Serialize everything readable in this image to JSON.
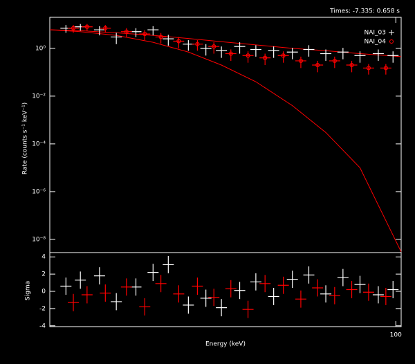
{
  "chart_data": [
    {
      "type": "scatter",
      "title": "Times: -7.335: 0.658 s",
      "ylabel": "Rate (counts s⁻¹ keV⁻¹)",
      "xscale": "log",
      "yscale": "log",
      "xlim": [
        8,
        104
      ],
      "ylim": [
        2.8e-09,
        20
      ],
      "yticks": [
        {
          "value": 1,
          "label": "10⁰"
        },
        {
          "value": 0.01,
          "label": "10⁻²"
        },
        {
          "value": 0.0001,
          "label": "10⁻⁴"
        },
        {
          "value": 1e-06,
          "label": "10⁻⁶"
        },
        {
          "value": 1e-08,
          "label": "10⁻⁸"
        }
      ],
      "legend": "upper right",
      "series": [
        {
          "name": "NAI_03",
          "color": "#ffffff",
          "marker": "+",
          "x": [
            9,
            10,
            11.5,
            13,
            15,
            17,
            19,
            22,
            25,
            28,
            32,
            36,
            41,
            47,
            53,
            60,
            68,
            77,
            88,
            98
          ],
          "values": [
            7,
            8,
            6,
            3,
            5,
            6,
            2.5,
            1.5,
            1,
            0.8,
            1.2,
            0.9,
            0.8,
            0.7,
            0.9,
            0.6,
            0.7,
            0.5,
            0.6,
            0.5
          ],
          "errors": [
            2.5,
            2.5,
            2.5,
            1.5,
            2,
            2.5,
            1.2,
            0.7,
            0.5,
            0.4,
            0.6,
            0.45,
            0.4,
            0.35,
            0.45,
            0.3,
            0.35,
            0.25,
            0.3,
            0.25
          ]
        },
        {
          "name": "NAI_04",
          "color": "#ff0000",
          "marker": "o",
          "x": [
            9.5,
            10.5,
            12,
            14,
            16,
            18,
            20.5,
            23.5,
            26.5,
            30,
            34,
            38.5,
            44,
            50,
            56.5,
            64,
            72.5,
            82,
            93
          ],
          "values": [
            7,
            8,
            7,
            5,
            4,
            3,
            2,
            1.5,
            1.2,
            0.6,
            0.5,
            0.4,
            0.5,
            0.3,
            0.2,
            0.3,
            0.2,
            0.15,
            0.15
          ],
          "errors": [
            2.5,
            2.5,
            2.5,
            2,
            1.8,
            1.4,
            1,
            0.7,
            0.6,
            0.3,
            0.25,
            0.2,
            0.25,
            0.15,
            0.1,
            0.15,
            0.1,
            0.07,
            0.07
          ]
        }
      ],
      "models": [
        {
          "color": "#ff0000",
          "x": [
            8,
            10,
            13,
            17,
            22,
            28,
            36,
            47,
            60,
            77,
            104
          ],
          "values": [
            6,
            5.5,
            4.5,
            3.5,
            2.6,
            1.9,
            1.4,
            1.0,
            0.8,
            0.6,
            0.45
          ]
        },
        {
          "color": "#ff0000",
          "x": [
            8,
            10,
            13,
            17,
            22,
            28,
            36,
            47,
            60,
            77,
            104
          ],
          "values": [
            6,
            5,
            3.5,
            1.8,
            0.7,
            0.2,
            0.04,
            0.004,
            0.0003,
            1e-05,
            3e-09
          ]
        }
      ]
    },
    {
      "type": "scatter",
      "ylabel": "Sigma",
      "xlabel": "Energy (keV)",
      "xscale": "log",
      "xlim": [
        8,
        104
      ],
      "ylim": [
        -4.1,
        4.5
      ],
      "xticks": [
        100
      ],
      "yticks": [
        -4,
        -2,
        0,
        2,
        4
      ],
      "series": [
        {
          "color": "#ffffff",
          "x": [
            9,
            10,
            11.5,
            13,
            15,
            17,
            19,
            22,
            25,
            28,
            32,
            36,
            41,
            47,
            53,
            60,
            68,
            77,
            88,
            98
          ],
          "values": [
            0.6,
            1.3,
            1.8,
            -1.2,
            0.5,
            2.2,
            3.1,
            -1.6,
            -0.8,
            -1.9,
            0.1,
            1.1,
            -0.6,
            1.4,
            1.9,
            -0.3,
            1.6,
            0.8,
            -0.4,
            0.2
          ],
          "errors": [
            1,
            1,
            1,
            1,
            1,
            1,
            1,
            1,
            1,
            1,
            1,
            1,
            1,
            1,
            1,
            1,
            1,
            1,
            1,
            1
          ]
        },
        {
          "color": "#ff0000",
          "x": [
            9.5,
            10.5,
            12,
            14,
            16,
            18,
            20.5,
            23.5,
            26.5,
            30,
            34,
            38.5,
            44,
            50,
            56.5,
            64,
            72.5,
            82,
            93
          ],
          "values": [
            -1.3,
            -0.4,
            -0.2,
            0.5,
            -1.8,
            0.9,
            -0.3,
            0.6,
            -0.7,
            0.3,
            -2.1,
            0.9,
            0.7,
            -0.9,
            0.4,
            -0.5,
            0.2,
            -0.1,
            -0.6
          ],
          "errors": [
            1,
            1,
            1,
            1,
            1,
            1,
            1,
            1,
            1,
            1,
            1,
            1,
            1,
            1,
            1,
            1,
            1,
            1,
            1
          ]
        }
      ]
    }
  ]
}
